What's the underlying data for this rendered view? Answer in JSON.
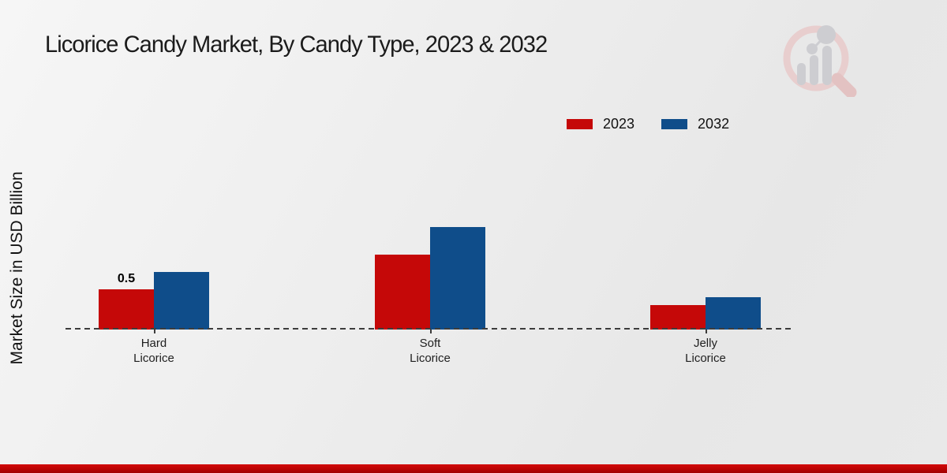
{
  "page": {
    "title": "Licorice Candy Market, By Candy Type, 2023 & 2032"
  },
  "y_axis_label": "Market Size in USD Billion",
  "legend": {
    "items": [
      {
        "label": "2023",
        "color": "#c50808"
      },
      {
        "label": "2032",
        "color": "#0f4d8a"
      }
    ]
  },
  "logo": {
    "name": "magnifier-bar-chart-watermark"
  },
  "footer": {
    "band_color": "#c00404"
  },
  "chart_data": {
    "type": "bar",
    "title": "Licorice Candy Market, By Candy Type, 2023 & 2032",
    "ylabel": "Market Size in USD Billion",
    "xlabel": "",
    "categories": [
      "Hard Licorice",
      "Soft Licorice",
      "Jelly Licorice"
    ],
    "series": [
      {
        "name": "2023",
        "color": "#c50808",
        "values": [
          0.5,
          0.93,
          0.3
        ]
      },
      {
        "name": "2032",
        "color": "#0f4d8a",
        "values": [
          0.72,
          1.27,
          0.4
        ]
      }
    ],
    "annotations": [
      {
        "category_index": 0,
        "series_index": 0,
        "text": "0.5"
      }
    ],
    "ylim": [
      0,
      1.4
    ],
    "grid": false,
    "baseline_style": "dashed",
    "legend_position": "top-right",
    "unit": "USD Billion"
  }
}
